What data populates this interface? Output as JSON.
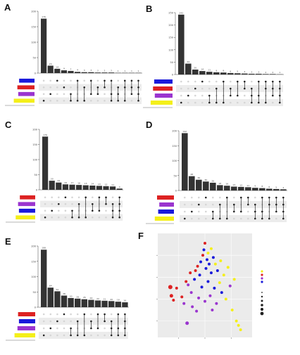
{
  "colors": {
    "bar": "#333333",
    "blue": "#1a1adb",
    "red": "#dd2222",
    "purple": "#9a35cf",
    "yellow": "#f4ef1a",
    "dot_on": "#222222",
    "dot_off": "#d5d5d5",
    "shade": "#ececec",
    "pca_bg": "#ebebeb"
  },
  "panels": {
    "A": {
      "label": "A"
    },
    "B": {
      "label": "B"
    },
    "C": {
      "label": "C"
    },
    "D": {
      "label": "D"
    },
    "E": {
      "label": "E"
    },
    "F": {
      "label": "F"
    }
  },
  "chart_data": [
    {
      "panel": "A",
      "type": "bar",
      "bars": [
        176,
        24,
        14,
        9,
        7,
        4,
        3,
        3,
        2,
        2,
        2,
        1,
        1,
        1,
        1
      ],
      "ylim": [
        0,
        200
      ],
      "yticks": [
        0,
        50,
        100,
        150,
        200
      ],
      "set_colors": [
        "blue",
        "red",
        "purple",
        "yellow"
      ],
      "set_sizes": [
        0.52,
        0.58,
        0.55,
        0.7
      ],
      "intersections": [
        [
          3
        ],
        [
          2
        ],
        [
          0
        ],
        [
          1
        ],
        [
          2,
          3
        ],
        [
          0,
          3
        ],
        [
          1,
          3
        ],
        [
          0,
          2
        ],
        [
          1,
          2
        ],
        [
          0,
          1
        ],
        [
          0,
          2,
          3
        ],
        [
          1,
          2,
          3
        ],
        [
          0,
          1,
          3
        ],
        [
          0,
          1,
          2
        ],
        [
          0,
          1,
          2,
          3
        ]
      ]
    },
    {
      "panel": "B",
      "type": "bar",
      "bars": [
        242,
        44,
        20,
        14,
        11,
        9,
        8,
        6,
        5,
        4,
        3,
        3,
        2,
        2,
        1
      ],
      "ylim": [
        0,
        250
      ],
      "yticks": [
        0,
        50,
        100,
        150,
        200,
        250
      ],
      "set_colors": [
        "blue",
        "red",
        "purple",
        "yellow"
      ],
      "set_sizes": [
        0.62,
        0.66,
        0.6,
        0.74
      ],
      "intersections": [
        [
          3
        ],
        [
          2
        ],
        [
          1
        ],
        [
          0
        ],
        [
          2,
          3
        ],
        [
          1,
          3
        ],
        [
          0,
          3
        ],
        [
          1,
          2
        ],
        [
          0,
          2
        ],
        [
          0,
          1
        ],
        [
          1,
          2,
          3
        ],
        [
          0,
          2,
          3
        ],
        [
          0,
          1,
          3
        ],
        [
          0,
          1,
          2
        ],
        [
          0,
          1,
          2,
          3
        ]
      ]
    },
    {
      "panel": "C",
      "type": "bar",
      "bars": [
        176,
        30,
        24,
        18,
        17,
        16,
        15,
        14,
        13,
        12,
        11,
        4
      ],
      "ylim": [
        0,
        200
      ],
      "yticks": [
        0,
        50,
        100,
        150,
        200
      ],
      "set_colors": [
        "red",
        "purple",
        "blue",
        "yellow"
      ],
      "set_sizes": [
        0.52,
        0.58,
        0.55,
        0.66
      ],
      "intersections": [
        [
          3
        ],
        [
          2
        ],
        [
          1
        ],
        [
          0
        ],
        [
          2,
          3
        ],
        [
          1,
          3
        ],
        [
          0,
          3
        ],
        [
          1,
          2
        ],
        [
          0,
          2
        ],
        [
          0,
          1
        ],
        [
          1,
          2,
          3
        ],
        [
          0,
          1,
          2,
          3
        ]
      ]
    },
    {
      "panel": "D",
      "type": "bar",
      "bars": [
        192,
        48,
        36,
        30,
        26,
        18,
        16,
        13,
        12,
        11,
        9,
        8,
        6,
        5,
        4
      ],
      "ylim": [
        0,
        200
      ],
      "yticks": [
        0,
        50,
        100,
        150,
        200
      ],
      "set_colors": [
        "red",
        "purple",
        "blue",
        "yellow"
      ],
      "set_sizes": [
        0.6,
        0.52,
        0.56,
        0.68
      ],
      "intersections": [
        [
          3
        ],
        [
          2
        ],
        [
          1
        ],
        [
          0
        ],
        [
          2,
          3
        ],
        [
          1,
          3
        ],
        [
          0,
          3
        ],
        [
          1,
          2
        ],
        [
          0,
          2
        ],
        [
          0,
          1
        ],
        [
          1,
          2,
          3
        ],
        [
          0,
          2,
          3
        ],
        [
          0,
          1,
          3
        ],
        [
          0,
          1,
          2
        ],
        [
          0,
          1,
          2,
          3
        ]
      ]
    },
    {
      "panel": "E",
      "type": "bar",
      "bars": [
        188,
        64,
        52,
        38,
        30,
        28,
        26,
        24,
        22,
        21,
        20,
        18,
        16
      ],
      "ylim": [
        0,
        200
      ],
      "yticks": [
        0,
        50,
        100,
        150,
        200
      ],
      "set_colors": [
        "red",
        "blue",
        "purple",
        "yellow"
      ],
      "set_sizes": [
        0.58,
        0.55,
        0.6,
        0.7
      ],
      "intersections": [
        [
          3
        ],
        [
          2
        ],
        [
          1
        ],
        [
          0
        ],
        [
          2,
          3
        ],
        [
          1,
          3
        ],
        [
          0,
          3
        ],
        [
          1,
          2
        ],
        [
          0,
          2
        ],
        [
          0,
          1
        ],
        [
          1,
          2,
          3
        ],
        [
          0,
          2,
          3
        ],
        [
          0,
          1,
          2,
          3
        ]
      ]
    },
    {
      "panel": "F",
      "type": "scatter",
      "xlim": [
        -45,
        45
      ],
      "ylim": [
        -55,
        40
      ],
      "points": [
        {
          "x": -17,
          "y": -42,
          "c": "purple",
          "s": 2.5
        },
        {
          "x": -33,
          "y": -9,
          "c": "red",
          "s": 3
        },
        {
          "x": -32,
          "y": -17,
          "c": "red",
          "s": 2.5
        },
        {
          "x": -30,
          "y": -21,
          "c": "red",
          "s": 2
        },
        {
          "x": -27,
          "y": -10,
          "c": "red",
          "s": 2
        },
        {
          "x": -22,
          "y": -18,
          "c": "red",
          "s": 2
        },
        {
          "x": -20,
          "y": -24,
          "c": "purple",
          "s": 2
        },
        {
          "x": -18,
          "y": -4,
          "c": "red",
          "s": 2
        },
        {
          "x": -16,
          "y": -7,
          "c": "purple",
          "s": 2
        },
        {
          "x": -14,
          "y": 4,
          "c": "red",
          "s": 2
        },
        {
          "x": -13,
          "y": -14,
          "c": "purple",
          "s": 2
        },
        {
          "x": -12,
          "y": -27,
          "c": "purple",
          "s": 2
        },
        {
          "x": -10,
          "y": -2,
          "c": "blue",
          "s": 2
        },
        {
          "x": -9,
          "y": 6,
          "c": "red",
          "s": 2
        },
        {
          "x": -8,
          "y": -31,
          "c": "purple",
          "s": 2
        },
        {
          "x": -7,
          "y": 10,
          "c": "red",
          "s": 2
        },
        {
          "x": -6,
          "y": -19,
          "c": "purple",
          "s": 2
        },
        {
          "x": -5,
          "y": 2,
          "c": "blue",
          "s": 2
        },
        {
          "x": -4,
          "y": 14,
          "c": "blue",
          "s": 2
        },
        {
          "x": -3,
          "y": -9,
          "c": "blue",
          "s": 2
        },
        {
          "x": -2,
          "y": 20,
          "c": "red",
          "s": 2
        },
        {
          "x": -1,
          "y": 25,
          "c": "blue",
          "s": 2
        },
        {
          "x": 0,
          "y": 31,
          "c": "red",
          "s": 2
        },
        {
          "x": 0,
          "y": -22,
          "c": "purple",
          "s": 2
        },
        {
          "x": 1,
          "y": 8,
          "c": "blue",
          "s": 2
        },
        {
          "x": 2,
          "y": 16,
          "c": "blue",
          "s": 2
        },
        {
          "x": 3,
          "y": 22,
          "c": "yellow",
          "s": 2
        },
        {
          "x": 3,
          "y": -4,
          "c": "blue",
          "s": 2
        },
        {
          "x": 4,
          "y": 12,
          "c": "blue",
          "s": 2
        },
        {
          "x": 5,
          "y": -17,
          "c": "purple",
          "s": 2
        },
        {
          "x": 6,
          "y": 26,
          "c": "yellow",
          "s": 2
        },
        {
          "x": 6,
          "y": 4,
          "c": "blue",
          "s": 2
        },
        {
          "x": 7,
          "y": -30,
          "c": "purple",
          "s": 2
        },
        {
          "x": 8,
          "y": 18,
          "c": "blue",
          "s": 2
        },
        {
          "x": 9,
          "y": -10,
          "c": "blue",
          "s": 2
        },
        {
          "x": 10,
          "y": 12,
          "c": "yellow",
          "s": 2
        },
        {
          "x": 11,
          "y": -24,
          "c": "purple",
          "s": 2
        },
        {
          "x": 12,
          "y": 6,
          "c": "blue",
          "s": 2
        },
        {
          "x": 14,
          "y": -5,
          "c": "yellow",
          "s": 2
        },
        {
          "x": 15,
          "y": 15,
          "c": "yellow",
          "s": 2
        },
        {
          "x": 16,
          "y": -14,
          "c": "blue",
          "s": 2
        },
        {
          "x": 18,
          "y": 2,
          "c": "yellow",
          "s": 2
        },
        {
          "x": 20,
          "y": -20,
          "c": "yellow",
          "s": 2
        },
        {
          "x": 22,
          "y": 9,
          "c": "yellow",
          "s": 2
        },
        {
          "x": 24,
          "y": -8,
          "c": "purple",
          "s": 2
        },
        {
          "x": 26,
          "y": -30,
          "c": "yellow",
          "s": 2
        },
        {
          "x": 28,
          "y": -2,
          "c": "yellow",
          "s": 2
        },
        {
          "x": 30,
          "y": -40,
          "c": "yellow",
          "s": 2
        },
        {
          "x": 32,
          "y": -44,
          "c": "yellow",
          "s": 2
        },
        {
          "x": 34,
          "y": -48,
          "c": "yellow",
          "s": 2
        }
      ],
      "legend_colors": [
        "yellow",
        "red",
        "purple",
        "blue"
      ],
      "legend_sizes": [
        1.5,
        2,
        2.5,
        3,
        3.5,
        4
      ]
    }
  ]
}
